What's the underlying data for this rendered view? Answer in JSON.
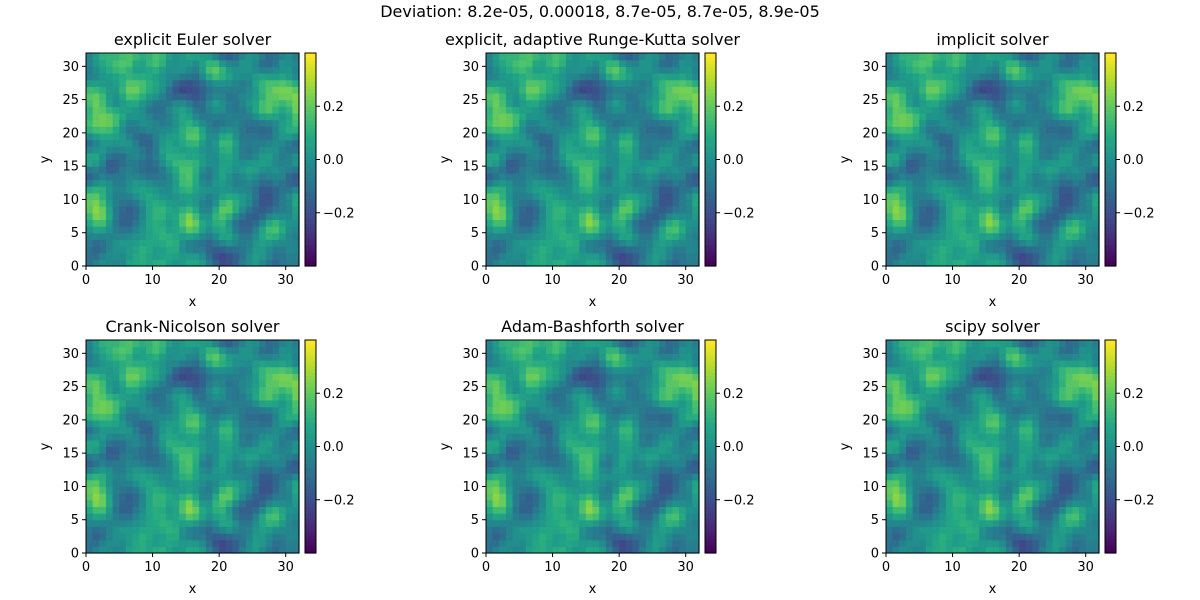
{
  "figure": {
    "suptitle": "Deviation: 8.2e-05, 0.00018, 8.7e-05, 8.7e-05, 8.9e-05"
  },
  "chart_data": [
    {
      "type": "heatmap",
      "title": "explicit Euler solver",
      "xlabel": "x",
      "ylabel": "y",
      "xlim": [
        0,
        32
      ],
      "ylim": [
        0,
        32
      ],
      "xticks": [
        "0",
        "10",
        "20",
        "30"
      ],
      "yticks": [
        "0",
        "5",
        "10",
        "15",
        "20",
        "25",
        "30"
      ],
      "colormap": "viridis",
      "colorbar": {
        "min": -0.4,
        "max": 0.4,
        "ticks": [
          "0.2",
          "0.0",
          "−0.2"
        ]
      },
      "grid": false
    },
    {
      "type": "heatmap",
      "title": "explicit, adaptive Runge-Kutta solver",
      "xlabel": "x",
      "ylabel": "y",
      "xlim": [
        0,
        32
      ],
      "ylim": [
        0,
        32
      ],
      "xticks": [
        "0",
        "10",
        "20",
        "30"
      ],
      "yticks": [
        "0",
        "5",
        "10",
        "15",
        "20",
        "25",
        "30"
      ],
      "colormap": "viridis",
      "colorbar": {
        "min": -0.4,
        "max": 0.4,
        "ticks": [
          "0.2",
          "0.0",
          "−0.2"
        ]
      },
      "grid": false
    },
    {
      "type": "heatmap",
      "title": "implicit solver",
      "xlabel": "x",
      "ylabel": "y",
      "xlim": [
        0,
        32
      ],
      "ylim": [
        0,
        32
      ],
      "xticks": [
        "0",
        "10",
        "20",
        "30"
      ],
      "yticks": [
        "0",
        "5",
        "10",
        "15",
        "20",
        "25",
        "30"
      ],
      "colormap": "viridis",
      "colorbar": {
        "min": -0.4,
        "max": 0.4,
        "ticks": [
          "0.2",
          "0.0",
          "−0.2"
        ]
      },
      "grid": false
    },
    {
      "type": "heatmap",
      "title": "Crank-Nicolson solver",
      "xlabel": "x",
      "ylabel": "y",
      "xlim": [
        0,
        32
      ],
      "ylim": [
        0,
        32
      ],
      "xticks": [
        "0",
        "10",
        "20",
        "30"
      ],
      "yticks": [
        "0",
        "5",
        "10",
        "15",
        "20",
        "25",
        "30"
      ],
      "colormap": "viridis",
      "colorbar": {
        "min": -0.4,
        "max": 0.4,
        "ticks": [
          "0.2",
          "0.0",
          "−0.2"
        ]
      },
      "grid": false
    },
    {
      "type": "heatmap",
      "title": "Adam-Bashforth solver",
      "xlabel": "x",
      "ylabel": "y",
      "xlim": [
        0,
        32
      ],
      "ylim": [
        0,
        32
      ],
      "xticks": [
        "0",
        "10",
        "20",
        "30"
      ],
      "yticks": [
        "0",
        "5",
        "10",
        "15",
        "20",
        "25",
        "30"
      ],
      "colormap": "viridis",
      "colorbar": {
        "min": -0.4,
        "max": 0.4,
        "ticks": [
          "0.2",
          "0.0",
          "−0.2"
        ]
      },
      "grid": false
    },
    {
      "type": "heatmap",
      "title": "scipy solver",
      "xlabel": "x",
      "ylabel": "y",
      "xlim": [
        0,
        32
      ],
      "ylim": [
        0,
        32
      ],
      "xticks": [
        "0",
        "10",
        "20",
        "30"
      ],
      "yticks": [
        "0",
        "5",
        "10",
        "15",
        "20",
        "25",
        "30"
      ],
      "colormap": "viridis",
      "colorbar": {
        "min": -0.4,
        "max": 0.4,
        "ticks": [
          "0.2",
          "0.0",
          "−0.2"
        ]
      },
      "grid": false
    }
  ]
}
